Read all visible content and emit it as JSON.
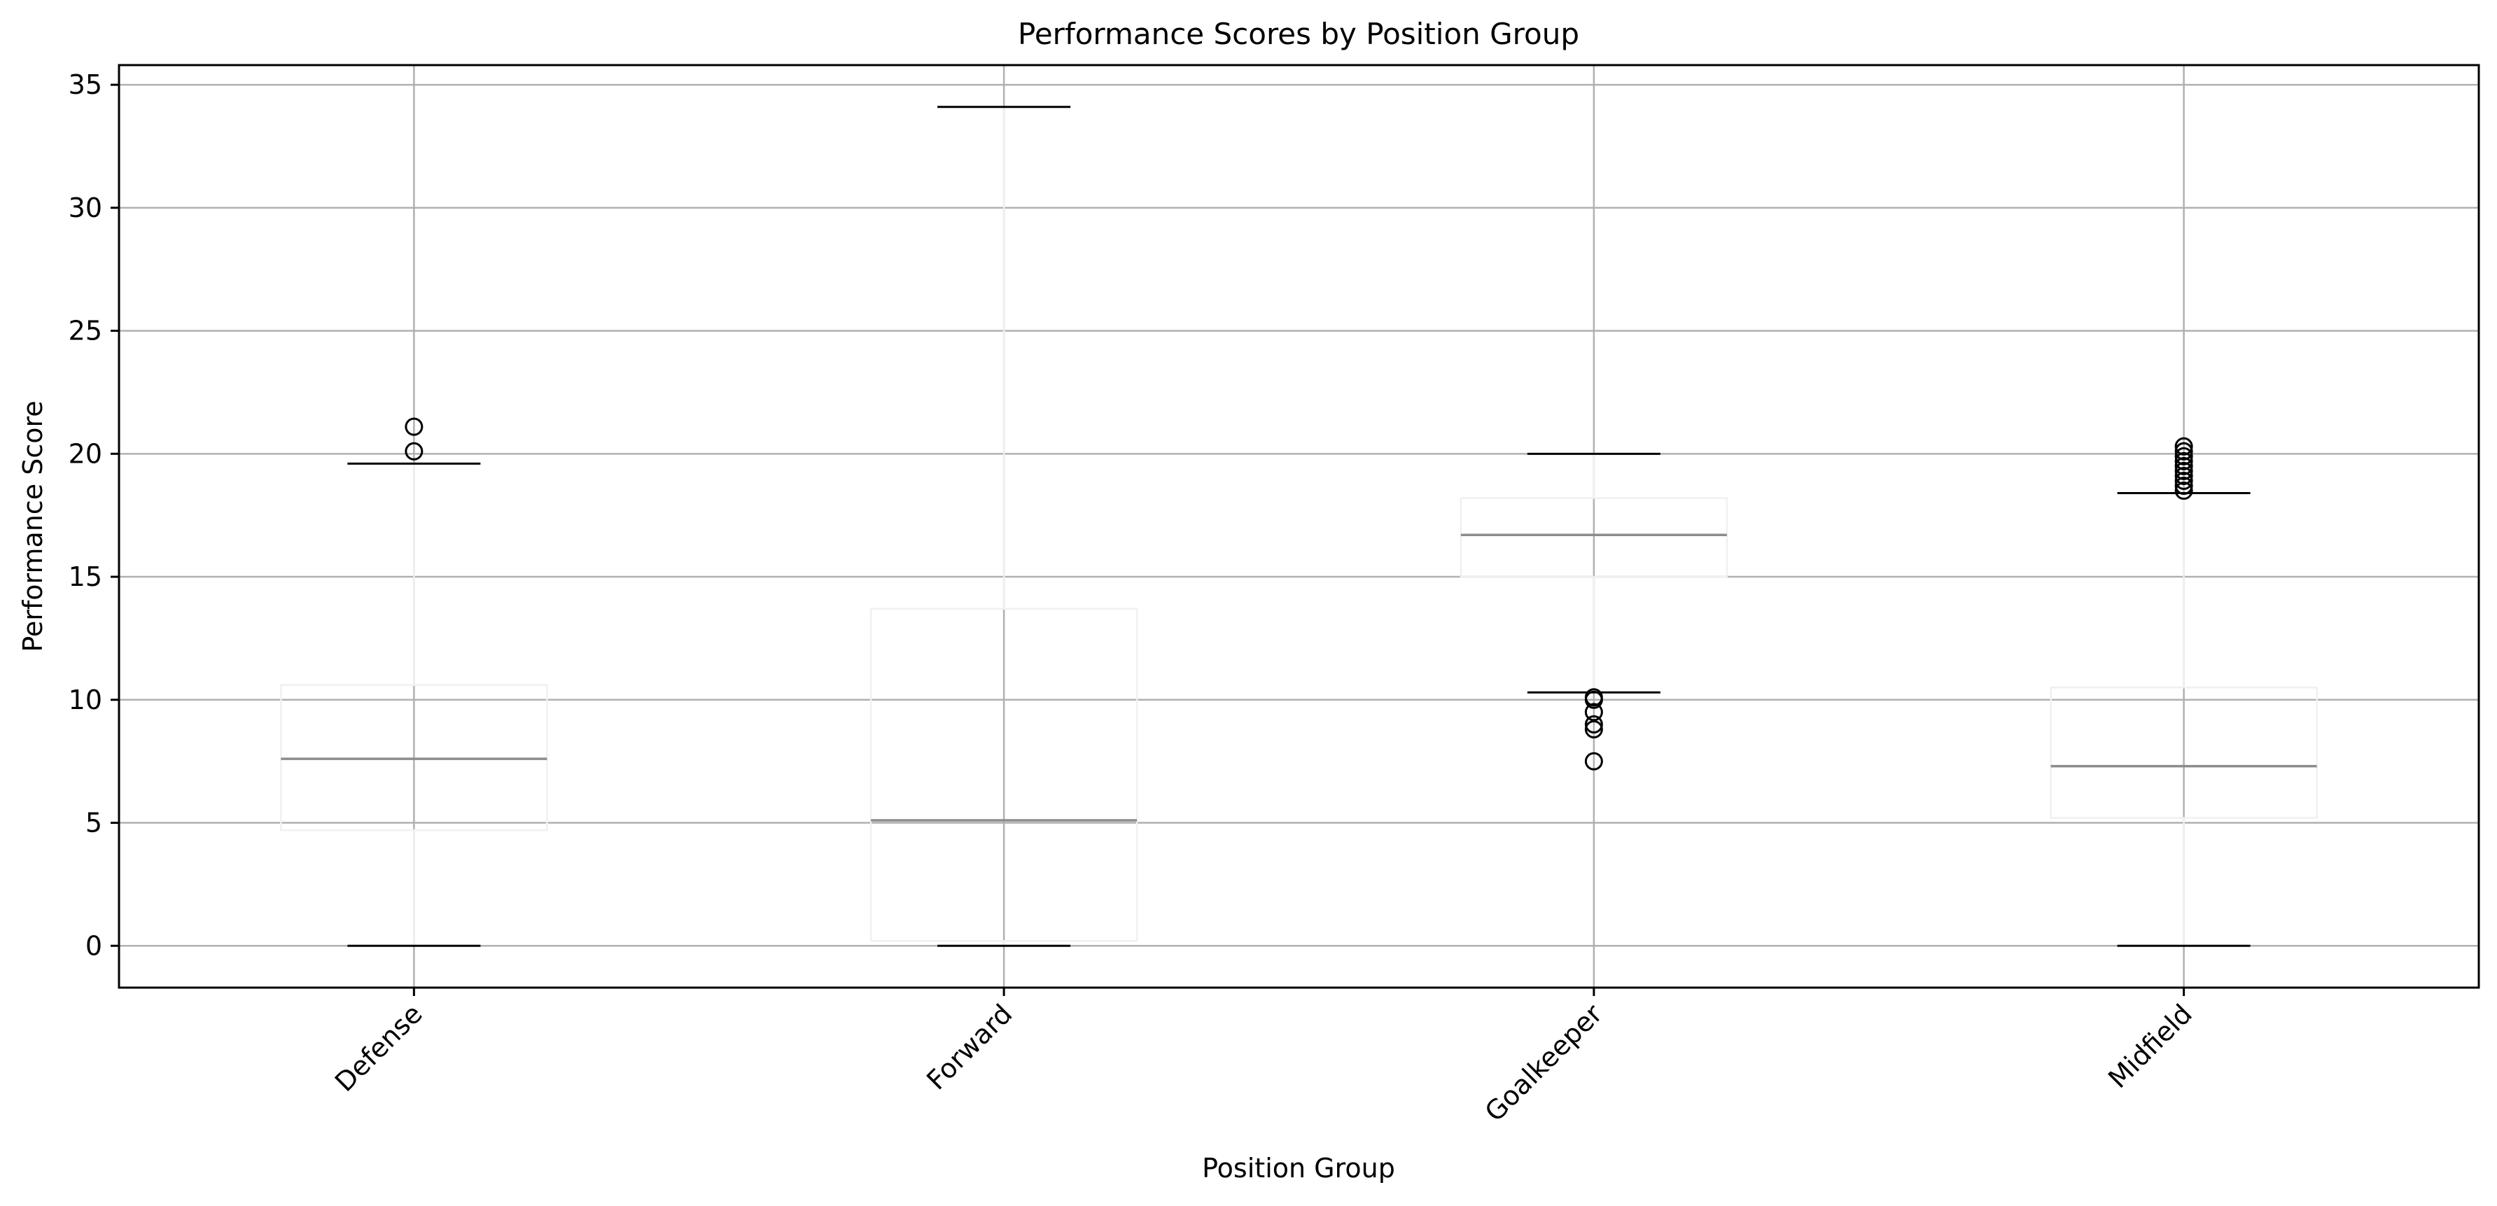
{
  "chart_data": {
    "type": "box",
    "title": "Performance Scores by Position Group",
    "xlabel": "Position Group",
    "ylabel": "Performance Score",
    "ylim": [
      -1.7,
      35.8
    ],
    "yticks": [
      0,
      5,
      10,
      15,
      20,
      25,
      30,
      35
    ],
    "grid": true,
    "legend": "none",
    "categories": [
      "Defense",
      "Forward",
      "Goalkeeper",
      "Midfield"
    ],
    "boxes": [
      {
        "name": "Defense",
        "whisker_low": 0.0,
        "q1": 4.7,
        "median": 7.6,
        "q3": 10.6,
        "whisker_high": 19.6,
        "outliers": [
          20.1,
          21.1
        ]
      },
      {
        "name": "Forward",
        "whisker_low": 0.0,
        "q1": 0.2,
        "median": 5.1,
        "q3": 13.7,
        "whisker_high": 34.1,
        "outliers": []
      },
      {
        "name": "Goalkeeper",
        "whisker_low": 10.3,
        "q1": 15.0,
        "median": 16.7,
        "q3": 18.2,
        "whisker_high": 20.0,
        "outliers": [
          7.5,
          8.8,
          9.0,
          9.5,
          10.0,
          10.1
        ]
      },
      {
        "name": "Midfield",
        "whisker_low": 0.0,
        "q1": 5.2,
        "median": 7.3,
        "q3": 10.5,
        "whisker_high": 18.4,
        "outliers": [
          18.5,
          18.7,
          18.9,
          19.1,
          19.3,
          19.5,
          19.7,
          19.9,
          20.1,
          20.3
        ]
      }
    ],
    "colors": {
      "grid": "#b0b0b0",
      "box": "#f0f0f0",
      "median": "#8c8c8c",
      "whisker_cap": "#000000",
      "outlier": "#000000"
    }
  }
}
